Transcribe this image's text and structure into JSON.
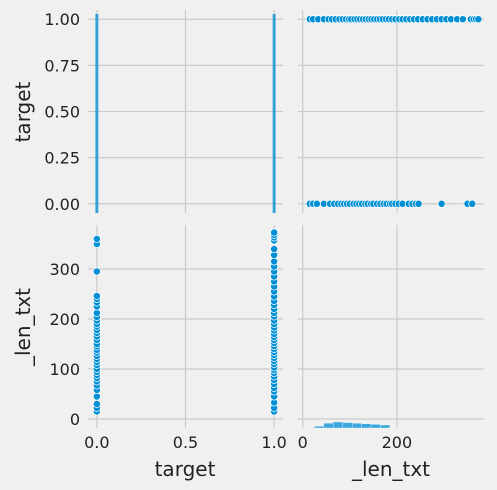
{
  "chart_data": {
    "type": "scatter",
    "kind": "pairplot",
    "variables": [
      "target",
      "_len_txt"
    ],
    "axis_labels": {
      "target": "target",
      "_len_txt": "_len_txt"
    },
    "ranges": {
      "target": [
        -0.05,
        1.05
      ],
      "_len_txt": [
        -18,
        388
      ]
    },
    "diag_ranges": {
      "target": [
        -0.05,
        1.05
      ],
      "_len_txt": [
        -10,
        385
      ]
    },
    "ticks": {
      "target": [
        "0.0",
        "0.5",
        "1.0"
      ],
      "target_y": [
        "0.00",
        "0.25",
        "0.50",
        "0.75",
        "1.00"
      ],
      "_len_txt": [
        "0",
        "100",
        "200",
        "300"
      ],
      "_len_txt_x": [
        "0",
        "200"
      ]
    },
    "grid": true,
    "colors": {
      "marker": "#008fd5",
      "marker_edge": "#ffffff",
      "grid": "#cbcbcb",
      "background": "#f0f0f0",
      "hist": "#008fd5"
    },
    "target_hist": {
      "bins": [
        0.0,
        1.0
      ],
      "heights": [
        1.0,
        1.0
      ]
    },
    "len_hist": {
      "bin_edges": [
        25,
        45,
        65,
        85,
        105,
        125,
        145,
        165,
        185
      ],
      "heights": [
        0.3,
        0.8,
        1.0,
        0.9,
        0.8,
        0.7,
        0.6,
        0.5
      ]
    },
    "points": {
      "target0_len": [
        15,
        22,
        30,
        45,
        58,
        67,
        75,
        82,
        88,
        94,
        100,
        108,
        114,
        120,
        126,
        133,
        138,
        145,
        150,
        158,
        165,
        172,
        178,
        185,
        190,
        197,
        204,
        212,
        225,
        233,
        240,
        246,
        295,
        350,
        360
      ],
      "target1_len": [
        15,
        22,
        33,
        45,
        55,
        62,
        70,
        78,
        85,
        92,
        98,
        103,
        110,
        116,
        122,
        128,
        134,
        140,
        146,
        152,
        158,
        164,
        170,
        177,
        183,
        190,
        197,
        205,
        212,
        220,
        228,
        236,
        245,
        255,
        265,
        275,
        285,
        295,
        305,
        315,
        328,
        340,
        357,
        363,
        368,
        373
      ]
    }
  }
}
